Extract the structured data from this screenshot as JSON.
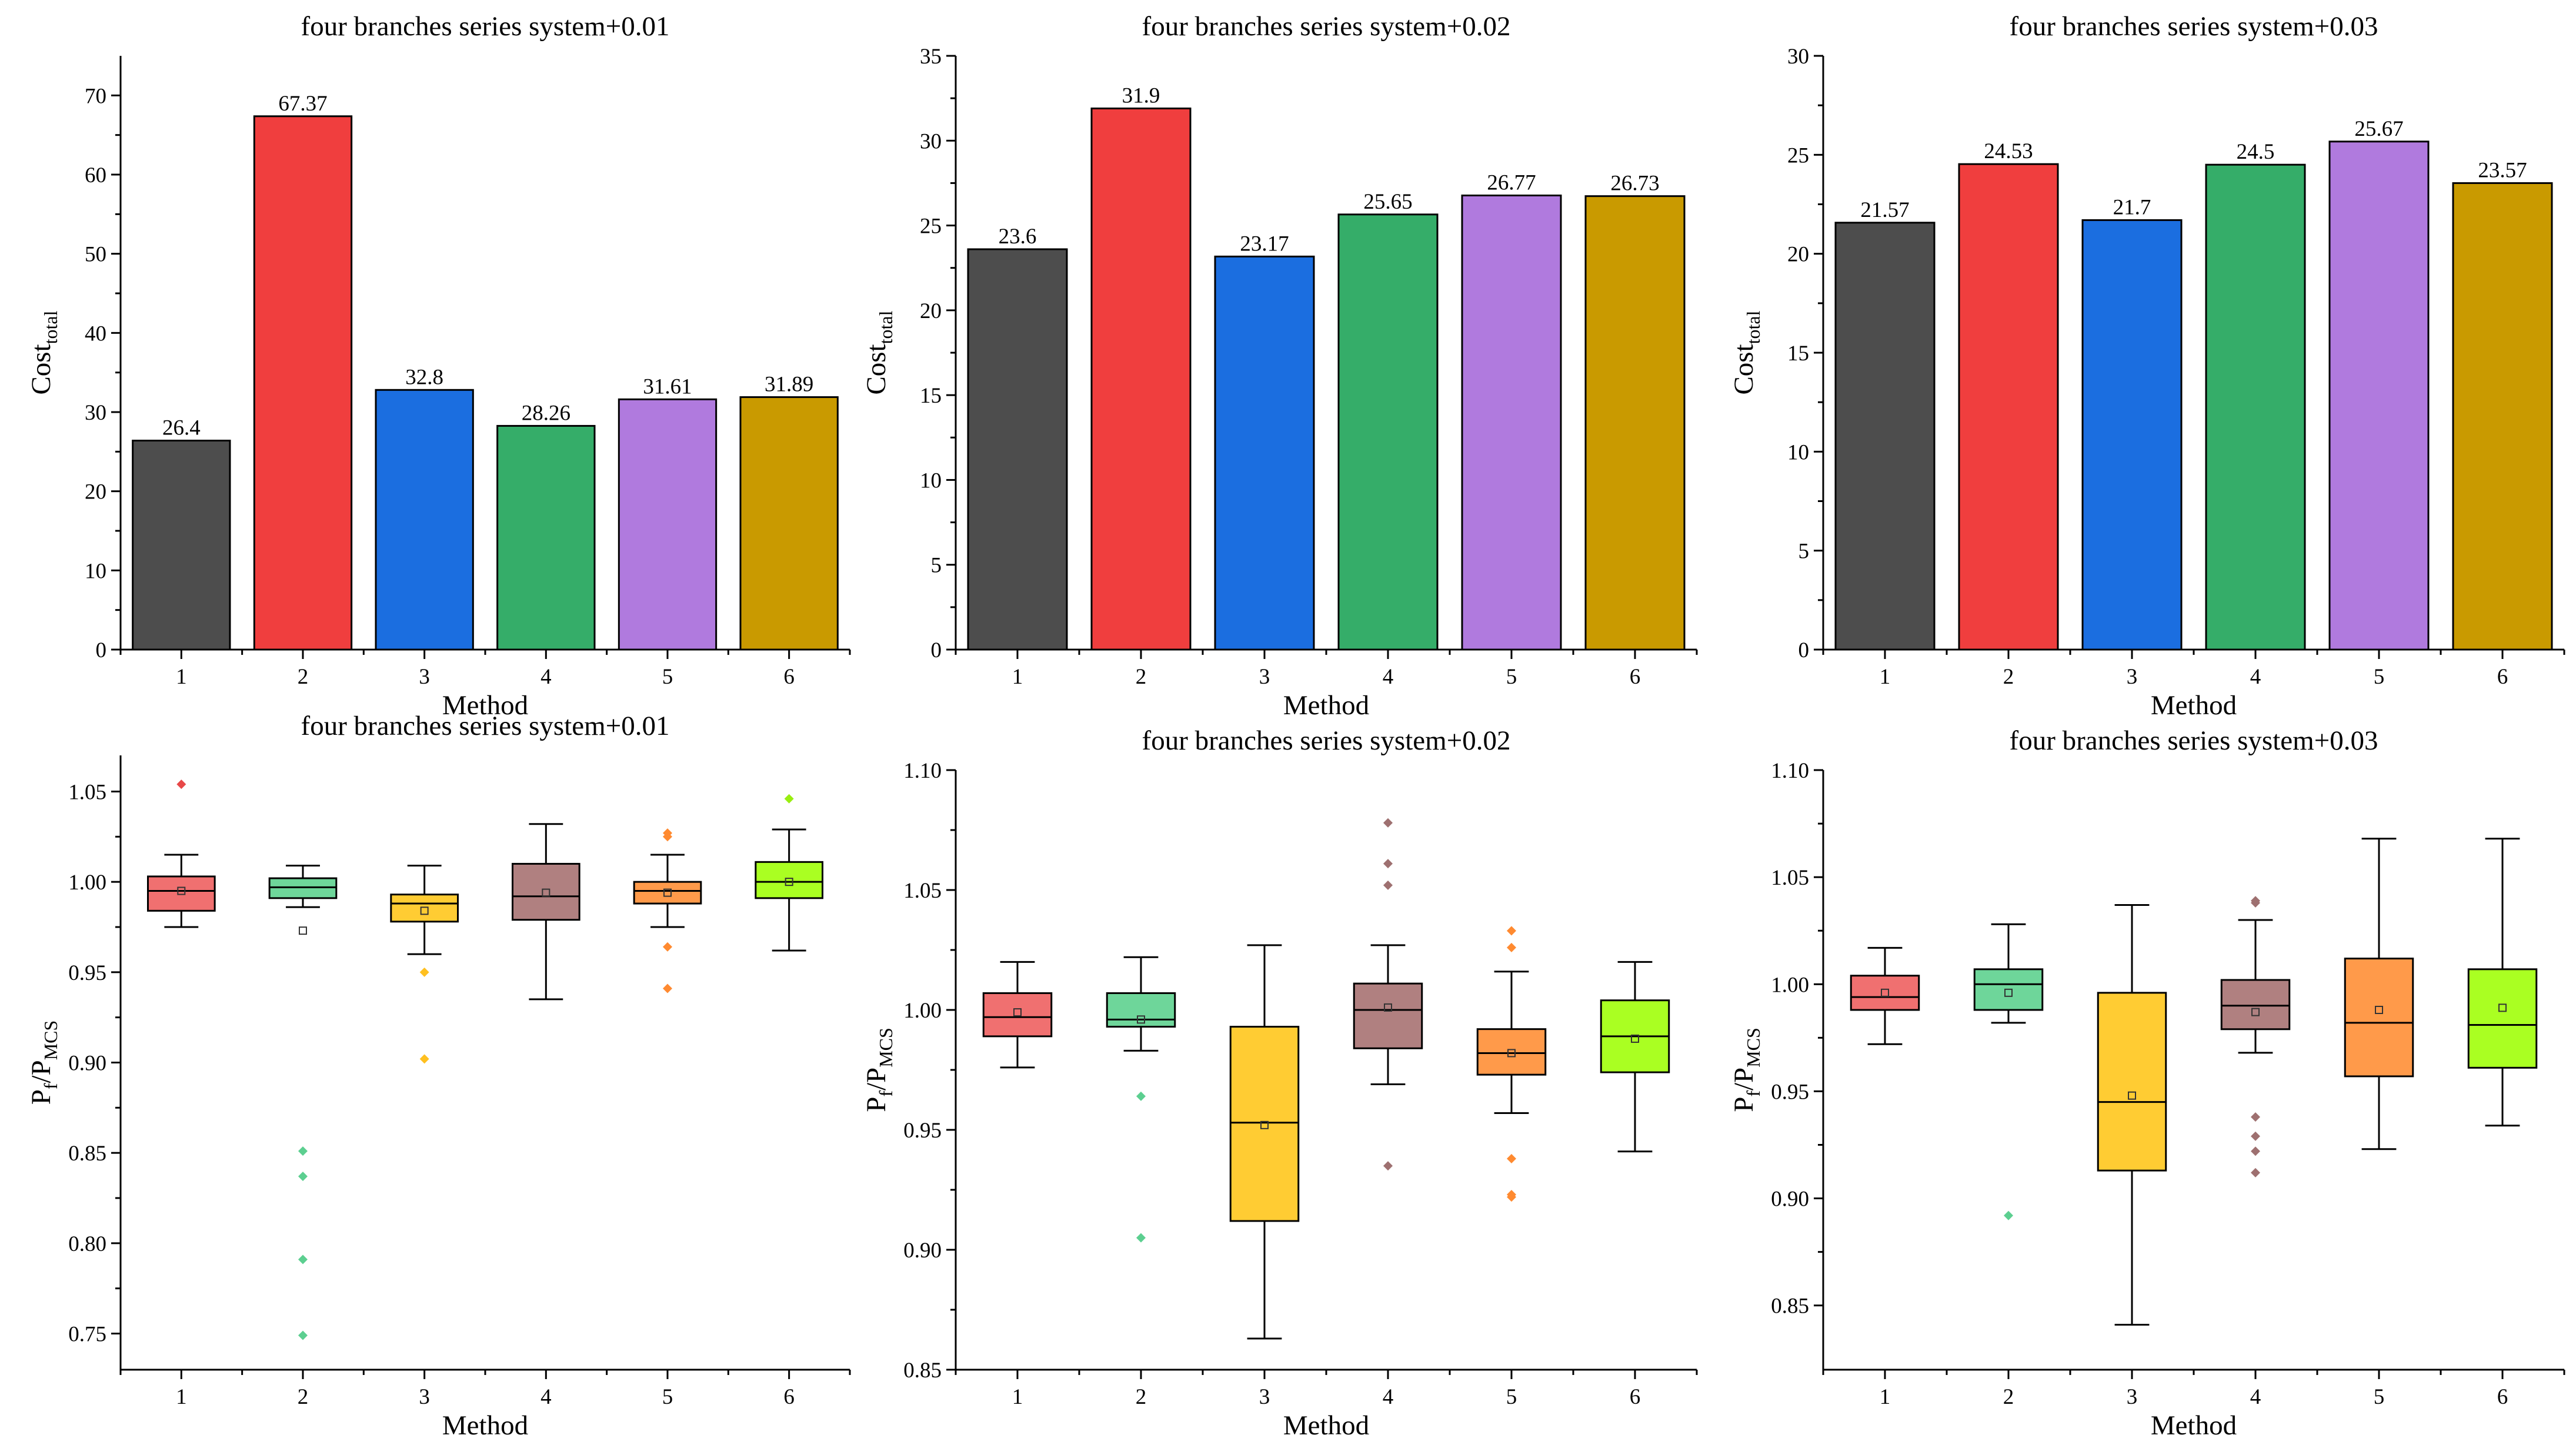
{
  "chart_data": [
    {
      "type": "bar",
      "title": "four branches series system+0.01",
      "xlabel": "Method",
      "ylabel": "Cost",
      "ylabel_sub": "total",
      "categories": [
        "1",
        "2",
        "3",
        "4",
        "5",
        "6"
      ],
      "values": [
        26.4,
        67.37,
        32.8,
        28.26,
        31.61,
        31.89
      ],
      "value_labels": [
        "26.4",
        "67.37",
        "32.8",
        "28.26",
        "31.61",
        "31.89"
      ],
      "ylim": [
        0,
        75
      ],
      "yticks": [
        0,
        10,
        20,
        30,
        40,
        50,
        60,
        70
      ],
      "colors": [
        "#4d4d4d",
        "#f03e3e",
        "#1b6ee0",
        "#35ad69",
        "#b07ade",
        "#c99a00"
      ]
    },
    {
      "type": "bar",
      "title": "four branches series system+0.02",
      "xlabel": "Method",
      "ylabel": "Cost",
      "ylabel_sub": "total",
      "categories": [
        "1",
        "2",
        "3",
        "4",
        "5",
        "6"
      ],
      "values": [
        23.6,
        31.9,
        23.17,
        25.65,
        26.77,
        26.73
      ],
      "value_labels": [
        "23.6",
        "31.9",
        "23.17",
        "25.65",
        "26.77",
        "26.73"
      ],
      "ylim": [
        0,
        35
      ],
      "yticks": [
        0,
        5,
        10,
        15,
        20,
        25,
        30,
        35
      ],
      "colors": [
        "#4d4d4d",
        "#f03e3e",
        "#1b6ee0",
        "#35ad69",
        "#b07ade",
        "#c99a00"
      ]
    },
    {
      "type": "bar",
      "title": "four branches series system+0.03",
      "xlabel": "Method",
      "ylabel": "Cost",
      "ylabel_sub": "total",
      "categories": [
        "1",
        "2",
        "3",
        "4",
        "5",
        "6"
      ],
      "values": [
        21.57,
        24.53,
        21.7,
        24.5,
        25.67,
        23.57
      ],
      "value_labels": [
        "21.57",
        "24.53",
        "21.7",
        "24.5",
        "25.67",
        "23.57"
      ],
      "ylim": [
        0,
        30
      ],
      "yticks": [
        0,
        5,
        10,
        15,
        20,
        25,
        30
      ],
      "colors": [
        "#4d4d4d",
        "#f03e3e",
        "#1b6ee0",
        "#35ad69",
        "#b07ade",
        "#c99a00"
      ]
    },
    {
      "type": "box",
      "title": "four branches series system+0.01",
      "xlabel": "Method",
      "ylabel": "P",
      "ylabel_sub": "f",
      "ylabel_den": "/P",
      "ylabel_den_sub": "MCS",
      "categories": [
        "1",
        "2",
        "3",
        "4",
        "5",
        "6"
      ],
      "ylim": [
        0.73,
        1.07
      ],
      "yticks": [
        0.75,
        0.8,
        0.85,
        0.9,
        0.95,
        1.0,
        1.05
      ],
      "ytick_labels": [
        "0.75",
        "0.80",
        "0.85",
        "0.90",
        "0.95",
        "1.00",
        "1.05"
      ],
      "boxes": [
        {
          "q1": 0.984,
          "median": 0.995,
          "q3": 1.003,
          "whisker_low": 0.975,
          "whisker_high": 1.015,
          "mean": 0.995,
          "outliers": [
            1.054
          ]
        },
        {
          "q1": 0.991,
          "median": 0.997,
          "q3": 1.002,
          "whisker_low": 0.986,
          "whisker_high": 1.009,
          "mean": 0.973,
          "outliers": [
            0.851,
            0.837,
            0.791,
            0.749
          ]
        },
        {
          "q1": 0.978,
          "median": 0.988,
          "q3": 0.993,
          "whisker_low": 0.96,
          "whisker_high": 1.009,
          "mean": 0.984,
          "outliers": [
            0.95,
            0.902
          ]
        },
        {
          "q1": 0.979,
          "median": 0.992,
          "q3": 1.01,
          "whisker_low": 0.935,
          "whisker_high": 1.032,
          "mean": 0.994,
          "outliers": []
        },
        {
          "q1": 0.988,
          "median": 0.995,
          "q3": 1.0,
          "whisker_low": 0.975,
          "whisker_high": 1.015,
          "mean": 0.994,
          "outliers": [
            1.027,
            1.025,
            0.964,
            0.941
          ]
        },
        {
          "q1": 0.991,
          "median": 1.0,
          "q3": 1.011,
          "whisker_low": 0.962,
          "whisker_high": 1.029,
          "mean": 1.0,
          "outliers": [
            1.046
          ]
        }
      ],
      "colors": [
        "#f07070",
        "#6ed69a",
        "#ffcc33",
        "#b08080",
        "#ff9a4a",
        "#aaff22"
      ],
      "outlier_colors": [
        "#e84848",
        "#5ccf90",
        "#ffc020",
        "#9e7070",
        "#ff8a30",
        "#99ee10"
      ]
    },
    {
      "type": "box",
      "title": "four branches series system+0.02",
      "xlabel": "Method",
      "ylabel": "P",
      "ylabel_sub": "f",
      "ylabel_den": "/P",
      "ylabel_den_sub": "MCS",
      "categories": [
        "1",
        "2",
        "3",
        "4",
        "5",
        "6"
      ],
      "ylim": [
        0.85,
        1.1
      ],
      "yticks": [
        0.85,
        0.9,
        0.95,
        1.0,
        1.05,
        1.1
      ],
      "ytick_labels": [
        "0.85",
        "0.90",
        "0.95",
        "1.00",
        "1.05",
        "1.10"
      ],
      "boxes": [
        {
          "q1": 0.989,
          "median": 0.997,
          "q3": 1.007,
          "whisker_low": 0.976,
          "whisker_high": 1.02,
          "mean": 0.999,
          "outliers": []
        },
        {
          "q1": 0.993,
          "median": 0.996,
          "q3": 1.007,
          "whisker_low": 0.983,
          "whisker_high": 1.022,
          "mean": 0.996,
          "outliers": [
            0.964,
            0.905
          ]
        },
        {
          "q1": 0.912,
          "median": 0.953,
          "q3": 0.993,
          "whisker_low": 0.863,
          "whisker_high": 1.027,
          "mean": 0.952,
          "outliers": []
        },
        {
          "q1": 0.984,
          "median": 1.0,
          "q3": 1.011,
          "whisker_low": 0.969,
          "whisker_high": 1.027,
          "mean": 1.001,
          "outliers": [
            1.078,
            1.061,
            1.052,
            0.935
          ]
        },
        {
          "q1": 0.973,
          "median": 0.982,
          "q3": 0.992,
          "whisker_low": 0.957,
          "whisker_high": 1.016,
          "mean": 0.982,
          "outliers": [
            1.033,
            1.026,
            0.938,
            0.923,
            0.922
          ]
        },
        {
          "q1": 0.974,
          "median": 0.989,
          "q3": 1.004,
          "whisker_low": 0.941,
          "whisker_high": 1.02,
          "mean": 0.988,
          "outliers": []
        }
      ],
      "colors": [
        "#f07070",
        "#6ed69a",
        "#ffcc33",
        "#b08080",
        "#ff9a4a",
        "#aaff22"
      ],
      "outlier_colors": [
        "#e84848",
        "#5ccf90",
        "#ffc020",
        "#9e7070",
        "#ff8a30",
        "#99ee10"
      ]
    },
    {
      "type": "box",
      "title": "four branches series system+0.03",
      "xlabel": "Method",
      "ylabel": "P",
      "ylabel_sub": "f",
      "ylabel_den": "/P",
      "ylabel_den_sub": "MCS",
      "categories": [
        "1",
        "2",
        "3",
        "4",
        "5",
        "6"
      ],
      "ylim": [
        0.82,
        1.1
      ],
      "yticks": [
        0.85,
        0.9,
        0.95,
        1.0,
        1.05,
        1.1
      ],
      "ytick_labels": [
        "0.85",
        "0.90",
        "0.95",
        "1.00",
        "1.05",
        "1.10"
      ],
      "boxes": [
        {
          "q1": 0.988,
          "median": 0.994,
          "q3": 1.004,
          "whisker_low": 0.972,
          "whisker_high": 1.017,
          "mean": 0.996,
          "outliers": []
        },
        {
          "q1": 0.988,
          "median": 1.0,
          "q3": 1.007,
          "whisker_low": 0.982,
          "whisker_high": 1.028,
          "mean": 0.996,
          "outliers": [
            0.892
          ]
        },
        {
          "q1": 0.913,
          "median": 0.945,
          "q3": 0.996,
          "whisker_low": 0.841,
          "whisker_high": 1.037,
          "mean": 0.948,
          "outliers": []
        },
        {
          "q1": 0.979,
          "median": 0.99,
          "q3": 1.002,
          "whisker_low": 0.968,
          "whisker_high": 1.03,
          "mean": 0.987,
          "outliers": [
            1.039,
            1.038,
            0.938,
            0.929,
            0.922,
            0.912
          ]
        },
        {
          "q1": 0.957,
          "median": 0.982,
          "q3": 1.012,
          "whisker_low": 0.923,
          "whisker_high": 1.068,
          "mean": 0.988,
          "outliers": []
        },
        {
          "q1": 0.961,
          "median": 0.981,
          "q3": 1.007,
          "whisker_low": 0.934,
          "whisker_high": 1.068,
          "mean": 0.989,
          "outliers": []
        }
      ],
      "colors": [
        "#f07070",
        "#6ed69a",
        "#ffcc33",
        "#b08080",
        "#ff9a4a",
        "#aaff22"
      ],
      "outlier_colors": [
        "#e84848",
        "#5ccf90",
        "#ffc020",
        "#9e7070",
        "#ff8a30",
        "#99ee10"
      ]
    }
  ]
}
